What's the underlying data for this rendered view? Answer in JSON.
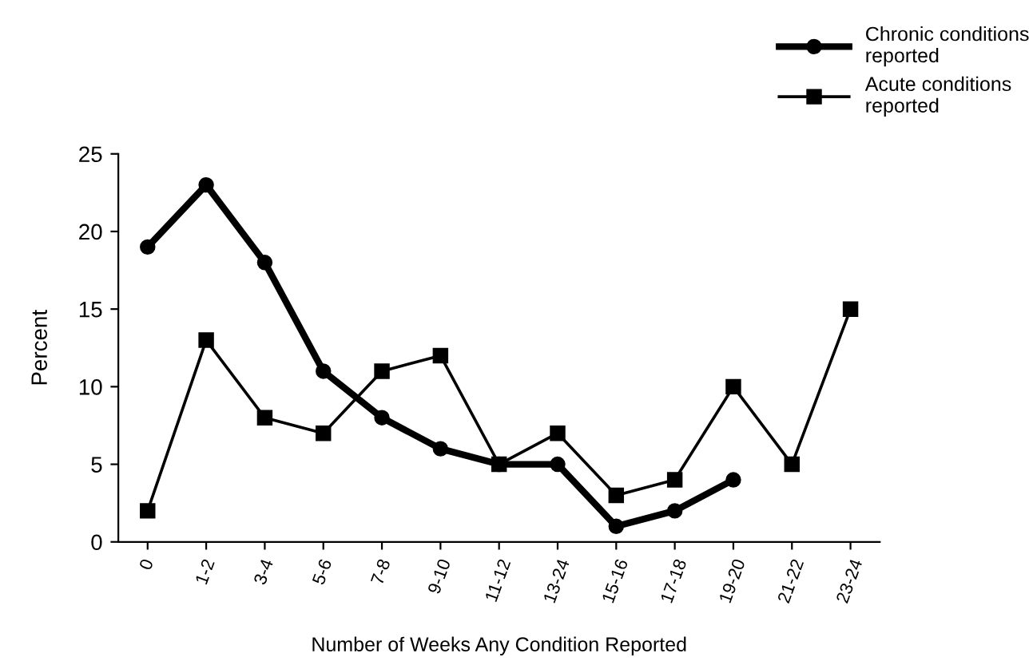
{
  "chart_data": {
    "type": "line",
    "xlabel": "Number of Weeks Any Condition Reported",
    "ylabel": "Percent",
    "categories": [
      "0",
      "1-2",
      "3-4",
      "5-6",
      "7-8",
      "9-10",
      "11-12",
      "13-24",
      "15-16",
      "17-18",
      "19-20",
      "21-22",
      "23-24"
    ],
    "series": [
      {
        "name": "Chronic conditions\nreported",
        "color": "#000000",
        "marker": "circle",
        "values": [
          19,
          23,
          18,
          11,
          8,
          6,
          5,
          5,
          1,
          2,
          4,
          null,
          null
        ]
      },
      {
        "name": "Acute conditions\nreported",
        "color": "#000000",
        "marker": "square",
        "values": [
          2,
          13,
          8,
          7,
          11,
          12,
          5,
          7,
          3,
          4,
          10,
          5,
          15
        ]
      }
    ],
    "ylim": [
      0,
      25
    ],
    "yticks": [
      0,
      5,
      10,
      15,
      20,
      25
    ],
    "grid": false,
    "legend": "top right",
    "line_style": "solid"
  }
}
